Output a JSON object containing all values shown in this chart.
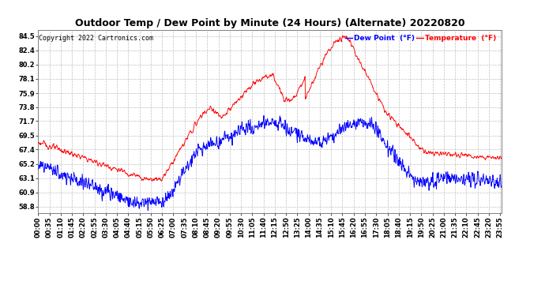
{
  "title": "Outdoor Temp / Dew Point by Minute (24 Hours) (Alternate) 20220820",
  "copyright": "Copyright 2022 Cartronics.com",
  "legend_dew": "Dew Point  (°F)",
  "legend_temp": "Temperature  (°F)",
  "yticks": [
    58.8,
    60.9,
    63.1,
    65.2,
    67.4,
    69.5,
    71.7,
    73.8,
    75.9,
    78.1,
    80.2,
    82.4,
    84.5
  ],
  "ylim": [
    57.8,
    85.5
  ],
  "temp_color": "#ff0000",
  "dew_color": "#0000ff",
  "bg_color": "#ffffff",
  "grid_color": "#c0c0c0",
  "title_color": "#000000",
  "copyright_color": "#000000",
  "x_tick_interval": 35,
  "title_fontsize": 9.0,
  "tick_fontsize": 6.0
}
